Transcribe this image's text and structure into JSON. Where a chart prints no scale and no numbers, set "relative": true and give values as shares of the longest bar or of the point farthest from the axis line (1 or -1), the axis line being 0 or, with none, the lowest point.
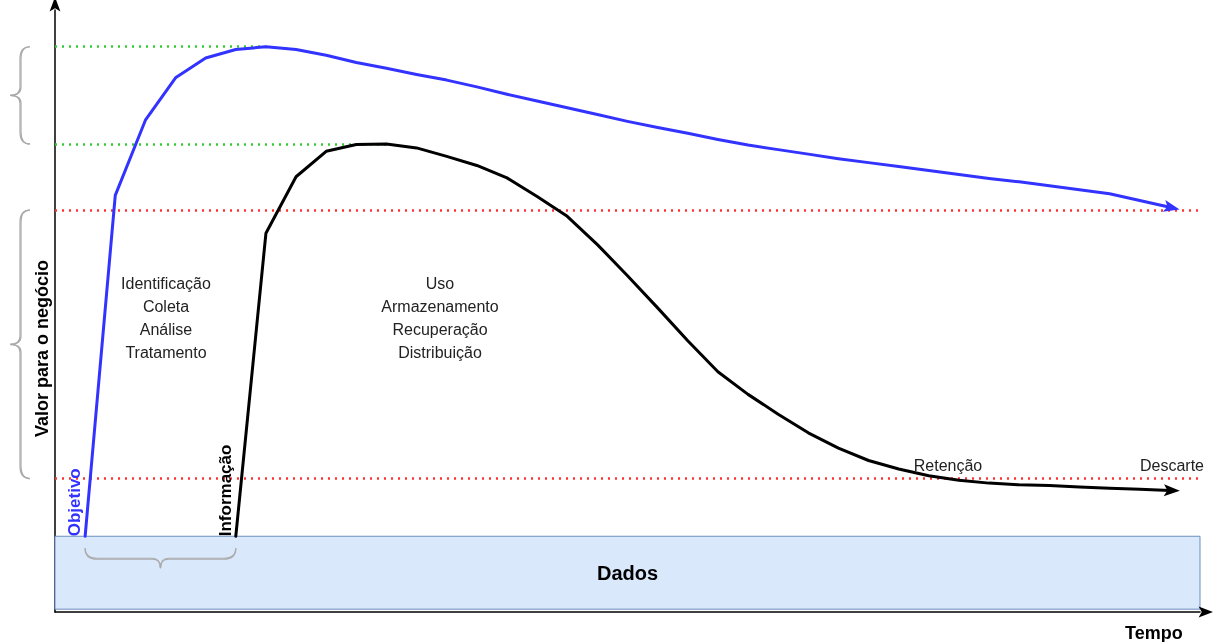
{
  "chart_data": {
    "type": "line",
    "relative": true,
    "xlabel": "Tempo",
    "ylabel": "Valor para o negócio",
    "marker": "none",
    "categories": [
      null,
      null,
      null,
      null,
      null,
      null,
      null,
      null,
      null,
      null,
      null,
      null,
      null,
      null,
      null,
      null,
      null,
      null,
      null,
      null,
      null,
      null,
      null,
      null,
      null,
      null,
      null,
      null,
      null,
      null,
      null,
      null,
      null,
      null,
      null,
      null,
      null,
      null,
      null
    ],
    "series": [
      {
        "name": "Objetivo",
        "color": "#3333ff",
        "values": [
          null,
          0.134,
          0.737,
          0.87,
          0.945,
          0.98,
          0.995,
          1.0,
          0.995,
          0.985,
          0.972,
          0.962,
          0.951,
          0.941,
          0.929,
          0.916,
          0.904,
          0.892,
          0.88,
          0.868,
          0.857,
          0.847,
          0.836,
          0.826,
          0.818,
          0.81,
          0.802,
          0.795,
          0.788,
          0.781,
          0.774,
          0.767,
          0.761,
          0.754,
          0.747,
          0.74,
          0.728,
          0.716,
          null
        ]
      },
      {
        "name": "Informação",
        "color": "#000000",
        "values": [
          null,
          null,
          null,
          null,
          null,
          null,
          0.134,
          0.67,
          0.77,
          0.815,
          0.827,
          0.828,
          0.821,
          0.806,
          0.79,
          0.768,
          0.735,
          0.7,
          0.65,
          0.595,
          0.538,
          0.48,
          0.425,
          0.385,
          0.35,
          0.317,
          0.29,
          0.268,
          0.253,
          0.241,
          0.233,
          0.228,
          0.225,
          0.224,
          0.221,
          0.219,
          0.217,
          0.215,
          null
        ]
      }
    ],
    "ref_lines": [
      {
        "axis": "y",
        "value": 1.0,
        "color": "#33cc33",
        "line_style": "dotted"
      },
      {
        "axis": "y",
        "value": 0.828,
        "color": "#33cc33",
        "line_style": "dotted"
      },
      {
        "axis": "y",
        "value": 0.711,
        "color": "#ff3333",
        "line_style": "dotted"
      },
      {
        "axis": "y",
        "value": 0.236,
        "color": "#ff3333",
        "line_style": "dotted"
      }
    ],
    "bands": [
      {
        "axis": "y",
        "from": 0.005,
        "to": 0.134,
        "label": "Dados",
        "color": "#dae8fc"
      }
    ],
    "annotations": [
      "Identificação\nColeta\nAnálise\nTratamento",
      "Uso\nArmazenamento\nRecuperação\nDistribuição",
      "Retenção",
      "Descarte"
    ]
  }
}
